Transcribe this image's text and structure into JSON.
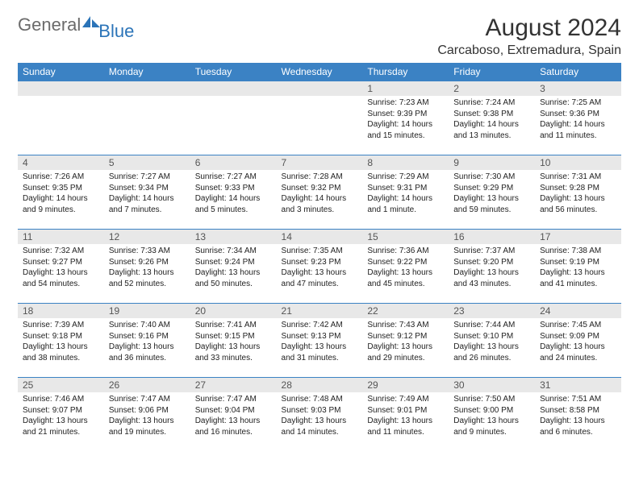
{
  "brand": {
    "name_gray": "General",
    "name_blue": "Blue"
  },
  "title": "August 2024",
  "location": "Carcaboso, Extremadura, Spain",
  "colors": {
    "header_bg": "#3b82c4",
    "header_text": "#ffffff",
    "daynum_bg": "#e8e8e8",
    "border": "#3b82c4",
    "logo_gray": "#6b6b6b",
    "logo_blue": "#2b74b8"
  },
  "weekdays": [
    "Sunday",
    "Monday",
    "Tuesday",
    "Wednesday",
    "Thursday",
    "Friday",
    "Saturday"
  ],
  "weeks": [
    [
      null,
      null,
      null,
      null,
      {
        "n": "1",
        "sr": "7:23 AM",
        "ss": "9:39 PM",
        "dl": "14 hours and 15 minutes."
      },
      {
        "n": "2",
        "sr": "7:24 AM",
        "ss": "9:38 PM",
        "dl": "14 hours and 13 minutes."
      },
      {
        "n": "3",
        "sr": "7:25 AM",
        "ss": "9:36 PM",
        "dl": "14 hours and 11 minutes."
      }
    ],
    [
      {
        "n": "4",
        "sr": "7:26 AM",
        "ss": "9:35 PM",
        "dl": "14 hours and 9 minutes."
      },
      {
        "n": "5",
        "sr": "7:27 AM",
        "ss": "9:34 PM",
        "dl": "14 hours and 7 minutes."
      },
      {
        "n": "6",
        "sr": "7:27 AM",
        "ss": "9:33 PM",
        "dl": "14 hours and 5 minutes."
      },
      {
        "n": "7",
        "sr": "7:28 AM",
        "ss": "9:32 PM",
        "dl": "14 hours and 3 minutes."
      },
      {
        "n": "8",
        "sr": "7:29 AM",
        "ss": "9:31 PM",
        "dl": "14 hours and 1 minute."
      },
      {
        "n": "9",
        "sr": "7:30 AM",
        "ss": "9:29 PM",
        "dl": "13 hours and 59 minutes."
      },
      {
        "n": "10",
        "sr": "7:31 AM",
        "ss": "9:28 PM",
        "dl": "13 hours and 56 minutes."
      }
    ],
    [
      {
        "n": "11",
        "sr": "7:32 AM",
        "ss": "9:27 PM",
        "dl": "13 hours and 54 minutes."
      },
      {
        "n": "12",
        "sr": "7:33 AM",
        "ss": "9:26 PM",
        "dl": "13 hours and 52 minutes."
      },
      {
        "n": "13",
        "sr": "7:34 AM",
        "ss": "9:24 PM",
        "dl": "13 hours and 50 minutes."
      },
      {
        "n": "14",
        "sr": "7:35 AM",
        "ss": "9:23 PM",
        "dl": "13 hours and 47 minutes."
      },
      {
        "n": "15",
        "sr": "7:36 AM",
        "ss": "9:22 PM",
        "dl": "13 hours and 45 minutes."
      },
      {
        "n": "16",
        "sr": "7:37 AM",
        "ss": "9:20 PM",
        "dl": "13 hours and 43 minutes."
      },
      {
        "n": "17",
        "sr": "7:38 AM",
        "ss": "9:19 PM",
        "dl": "13 hours and 41 minutes."
      }
    ],
    [
      {
        "n": "18",
        "sr": "7:39 AM",
        "ss": "9:18 PM",
        "dl": "13 hours and 38 minutes."
      },
      {
        "n": "19",
        "sr": "7:40 AM",
        "ss": "9:16 PM",
        "dl": "13 hours and 36 minutes."
      },
      {
        "n": "20",
        "sr": "7:41 AM",
        "ss": "9:15 PM",
        "dl": "13 hours and 33 minutes."
      },
      {
        "n": "21",
        "sr": "7:42 AM",
        "ss": "9:13 PM",
        "dl": "13 hours and 31 minutes."
      },
      {
        "n": "22",
        "sr": "7:43 AM",
        "ss": "9:12 PM",
        "dl": "13 hours and 29 minutes."
      },
      {
        "n": "23",
        "sr": "7:44 AM",
        "ss": "9:10 PM",
        "dl": "13 hours and 26 minutes."
      },
      {
        "n": "24",
        "sr": "7:45 AM",
        "ss": "9:09 PM",
        "dl": "13 hours and 24 minutes."
      }
    ],
    [
      {
        "n": "25",
        "sr": "7:46 AM",
        "ss": "9:07 PM",
        "dl": "13 hours and 21 minutes."
      },
      {
        "n": "26",
        "sr": "7:47 AM",
        "ss": "9:06 PM",
        "dl": "13 hours and 19 minutes."
      },
      {
        "n": "27",
        "sr": "7:47 AM",
        "ss": "9:04 PM",
        "dl": "13 hours and 16 minutes."
      },
      {
        "n": "28",
        "sr": "7:48 AM",
        "ss": "9:03 PM",
        "dl": "13 hours and 14 minutes."
      },
      {
        "n": "29",
        "sr": "7:49 AM",
        "ss": "9:01 PM",
        "dl": "13 hours and 11 minutes."
      },
      {
        "n": "30",
        "sr": "7:50 AM",
        "ss": "9:00 PM",
        "dl": "13 hours and 9 minutes."
      },
      {
        "n": "31",
        "sr": "7:51 AM",
        "ss": "8:58 PM",
        "dl": "13 hours and 6 minutes."
      }
    ]
  ],
  "labels": {
    "sunrise": "Sunrise:",
    "sunset": "Sunset:",
    "daylight": "Daylight:"
  }
}
